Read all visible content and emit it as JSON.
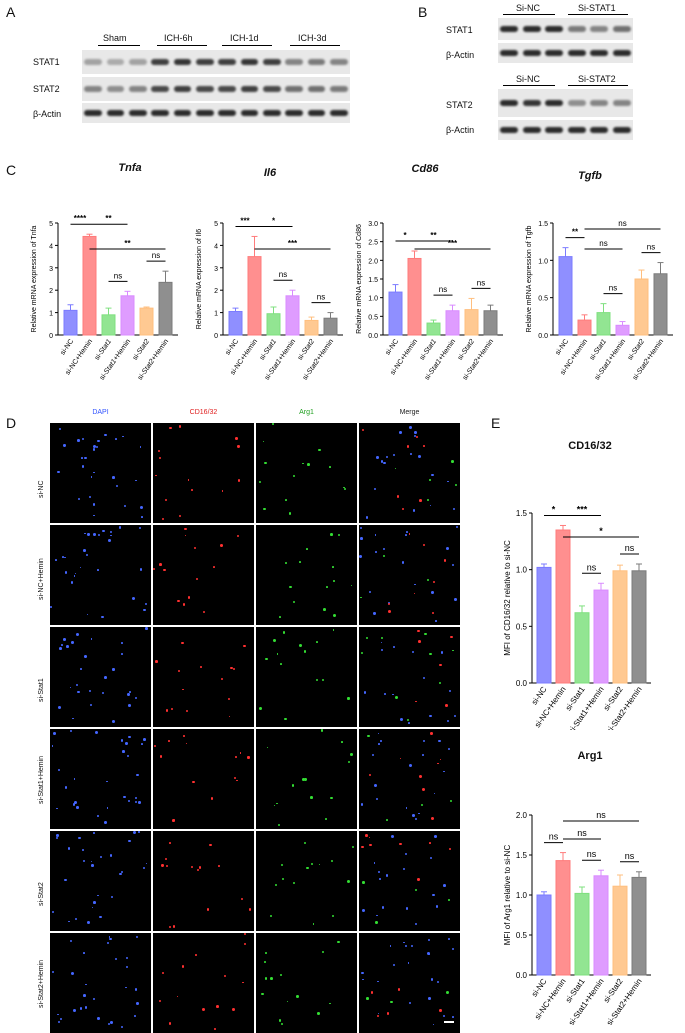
{
  "panelA": {
    "letter": "A",
    "groups": [
      "Sham",
      "ICH-6h",
      "ICH-1d",
      "ICH-3d"
    ],
    "rows": [
      "STAT1",
      "STAT2",
      "β-Actin"
    ]
  },
  "panelB": {
    "letter": "B",
    "top_groups": [
      "Si-NC",
      "Si-STAT1"
    ],
    "top_rows": [
      "STAT1",
      "β-Actin"
    ],
    "bottom_groups": [
      "Si-NC",
      "Si-STAT2"
    ],
    "bottom_rows": [
      "STAT2",
      "β-Actin"
    ]
  },
  "panelC": {
    "letter": "C"
  },
  "panelD": {
    "letter": "D",
    "columns": [
      "DAPI",
      "CD16/32",
      "Arg1",
      "Merge"
    ],
    "column_colors": [
      "#3355ff",
      "#e02020",
      "#20a020",
      "#222222"
    ],
    "rows": [
      "si-NC",
      "si-NC+Hemin",
      "si-Stat1",
      "si-Stat1+Hemin",
      "si-Stat2",
      "si-Stat2+Hemin"
    ]
  },
  "panelE": {
    "letter": "E"
  },
  "colors": [
    "#7b7bff",
    "#ff7b7b",
    "#7fe07f",
    "#d98bff",
    "#ffbf7f",
    "#7b7b7b"
  ],
  "chart_data": [
    {
      "type": "bar",
      "title": "Tnfa",
      "ylabel": "Relative mRNA expression of Tnfa",
      "categories": [
        "si-NC",
        "si-NC+Hemin",
        "si-Stat1",
        "si-Stat1+Hemin",
        "si-Stat2",
        "si-Stat2+Hemin"
      ],
      "italic_parts": [
        "",
        "",
        "Stat1",
        "Stat1",
        "Stat2",
        "Stat2"
      ],
      "values": [
        1.1,
        4.4,
        0.9,
        1.75,
        1.2,
        2.35
      ],
      "errors": [
        0.25,
        0.1,
        0.3,
        0.2,
        0.05,
        0.5
      ],
      "ylim": [
        0,
        5
      ],
      "yticks": [
        "0",
        "1",
        "2",
        "3",
        "4",
        "5"
      ],
      "yticks_values": [
        0,
        1,
        2,
        3,
        4,
        5
      ],
      "sig": [
        {
          "from": 0,
          "to": 1,
          "label": "****",
          "level": 0
        },
        {
          "from": 1,
          "to": 3,
          "label": "**",
          "level": 0
        },
        {
          "from": 2,
          "to": 3,
          "label": "ns",
          "level": 0
        },
        {
          "from": 4,
          "to": 5,
          "label": "ns",
          "level": 0
        },
        {
          "from": 1,
          "to": 5,
          "label": "**",
          "level": 1
        }
      ]
    },
    {
      "type": "bar",
      "title": "Il6",
      "ylabel": "Relative mRNA expression of Il6",
      "categories": [
        "si-NC",
        "si-NC+Hemin",
        "si-Stat1",
        "si-Stat1+Hemin",
        "si-Stat2",
        "si-Stat2+Hemin"
      ],
      "italic_parts": [
        "",
        "",
        "Stat1",
        "Stat1",
        "Stat2",
        "Stat2"
      ],
      "values": [
        1.05,
        3.5,
        0.95,
        1.75,
        0.65,
        0.75
      ],
      "errors": [
        0.15,
        0.9,
        0.3,
        0.25,
        0.15,
        0.25
      ],
      "ylim": [
        0,
        5
      ],
      "yticks": [
        "0",
        "1",
        "2",
        "3",
        "4",
        "5"
      ],
      "yticks_values": [
        0,
        1,
        2,
        3,
        4,
        5
      ],
      "sig": [
        {
          "from": 0,
          "to": 1,
          "label": "***",
          "level": 0
        },
        {
          "from": 1,
          "to": 3,
          "label": "*",
          "level": 0
        },
        {
          "from": 2,
          "to": 3,
          "label": "ns",
          "level": 0
        },
        {
          "from": 4,
          "to": 5,
          "label": "ns",
          "level": 0
        },
        {
          "from": 1,
          "to": 5,
          "label": "***",
          "level": 1
        }
      ]
    },
    {
      "type": "bar",
      "title": "Cd86",
      "ylabel": "Relative mRNA expression of Cd86",
      "categories": [
        "si-NC",
        "si-NC+Hemin",
        "si-Stat1",
        "si-Stat1+Hemin",
        "si-Stat2",
        "si-Stat2+Hemin"
      ],
      "italic_parts": [
        "",
        "",
        "Stat1",
        "Stat1",
        "Stat2",
        "Stat2"
      ],
      "values": [
        1.15,
        2.05,
        0.32,
        0.65,
        0.68,
        0.65
      ],
      "errors": [
        0.2,
        0.2,
        0.08,
        0.15,
        0.3,
        0.15
      ],
      "ylim": [
        0,
        3.0
      ],
      "yticks": [
        "0.0",
        "0.5",
        "1.0",
        "1.5",
        "2.0",
        "2.5",
        "3.0"
      ],
      "yticks_values": [
        0,
        0.5,
        1,
        1.5,
        2,
        2.5,
        3
      ],
      "sig": [
        {
          "from": 0,
          "to": 1,
          "label": "*",
          "level": 0
        },
        {
          "from": 1,
          "to": 3,
          "label": "**",
          "level": 0
        },
        {
          "from": 2,
          "to": 3,
          "label": "ns",
          "level": 0
        },
        {
          "from": 4,
          "to": 5,
          "label": "ns",
          "level": 0
        },
        {
          "from": 1,
          "to": 5,
          "label": "***",
          "level": 1
        }
      ]
    },
    {
      "type": "bar",
      "title": "Tgfb",
      "ylabel": "Relative mRNA expression of Tgfb",
      "categories": [
        "si-NC",
        "si-NC+Hemin",
        "si-Stat1",
        "si-Stat1+Hemin",
        "si-Stat2",
        "si-Stat2+Hemin"
      ],
      "italic_parts": [
        "",
        "",
        "Stat1",
        "Stat1",
        "Stat2",
        "Stat2"
      ],
      "values": [
        1.05,
        0.2,
        0.3,
        0.13,
        0.75,
        0.82
      ],
      "errors": [
        0.12,
        0.07,
        0.12,
        0.05,
        0.12,
        0.15
      ],
      "ylim": [
        0,
        1.5
      ],
      "yticks": [
        "0.0",
        "0.5",
        "1.0",
        "1.5"
      ],
      "yticks_values": [
        0,
        0.5,
        1,
        1.5
      ],
      "sig": [
        {
          "from": 0,
          "to": 1,
          "label": "**",
          "level": 0
        },
        {
          "from": 1,
          "to": 3,
          "label": "ns",
          "level": 1
        },
        {
          "from": 2,
          "to": 3,
          "label": "ns",
          "level": 0
        },
        {
          "from": 4,
          "to": 5,
          "label": "ns",
          "level": 0
        },
        {
          "from": 1,
          "to": 5,
          "label": "ns",
          "level": 2
        }
      ]
    },
    {
      "type": "bar",
      "title": "CD16/32",
      "ylabel": "MFI of CD16/32 relative to si-NC",
      "categories": [
        "si-NC",
        "si-NC+Hemin",
        "si-Stat1",
        "si-Stat1+Hemin",
        "si-Stat2",
        "si-Stat2+Hemin"
      ],
      "values": [
        1.02,
        1.35,
        0.62,
        0.82,
        0.99,
        0.99
      ],
      "errors": [
        0.03,
        0.04,
        0.06,
        0.06,
        0.05,
        0.06
      ],
      "ylim": [
        0,
        1.5
      ],
      "yticks": [
        "0.0",
        "0.5",
        "1.0",
        "1.5"
      ],
      "yticks_values": [
        0,
        0.5,
        1,
        1.5
      ],
      "sig": [
        {
          "from": 0,
          "to": 1,
          "label": "*",
          "level": 0
        },
        {
          "from": 1,
          "to": 3,
          "label": "***",
          "level": 0
        },
        {
          "from": 2,
          "to": 3,
          "label": "ns",
          "level": 0
        },
        {
          "from": 4,
          "to": 5,
          "label": "ns",
          "level": 0
        },
        {
          "from": 1,
          "to": 5,
          "label": "*",
          "level": 1
        }
      ]
    },
    {
      "type": "bar",
      "title": "Arg1",
      "ylabel": "MFI of Arg1 relative to si-NC",
      "categories": [
        "si-NC",
        "si-NC+Hemin",
        "si-Stat1",
        "si-Stat1+Hemin",
        "si-Stat2",
        "si-Stat2+Hemin"
      ],
      "values": [
        1.0,
        1.43,
        1.02,
        1.24,
        1.11,
        1.22
      ],
      "errors": [
        0.04,
        0.1,
        0.08,
        0.07,
        0.14,
        0.07
      ],
      "ylim": [
        0,
        2.0
      ],
      "yticks": [
        "0.0",
        "0.5",
        "1.0",
        "1.5",
        "2.0"
      ],
      "yticks_values": [
        0,
        0.5,
        1,
        1.5,
        2
      ],
      "sig": [
        {
          "from": 0,
          "to": 1,
          "label": "ns",
          "level": 0
        },
        {
          "from": 2,
          "to": 3,
          "label": "ns",
          "level": 0
        },
        {
          "from": 4,
          "to": 5,
          "label": "ns",
          "level": 0
        },
        {
          "from": 1,
          "to": 3,
          "label": "ns",
          "level": 1
        },
        {
          "from": 1,
          "to": 5,
          "label": "ns",
          "level": 2
        }
      ]
    }
  ]
}
